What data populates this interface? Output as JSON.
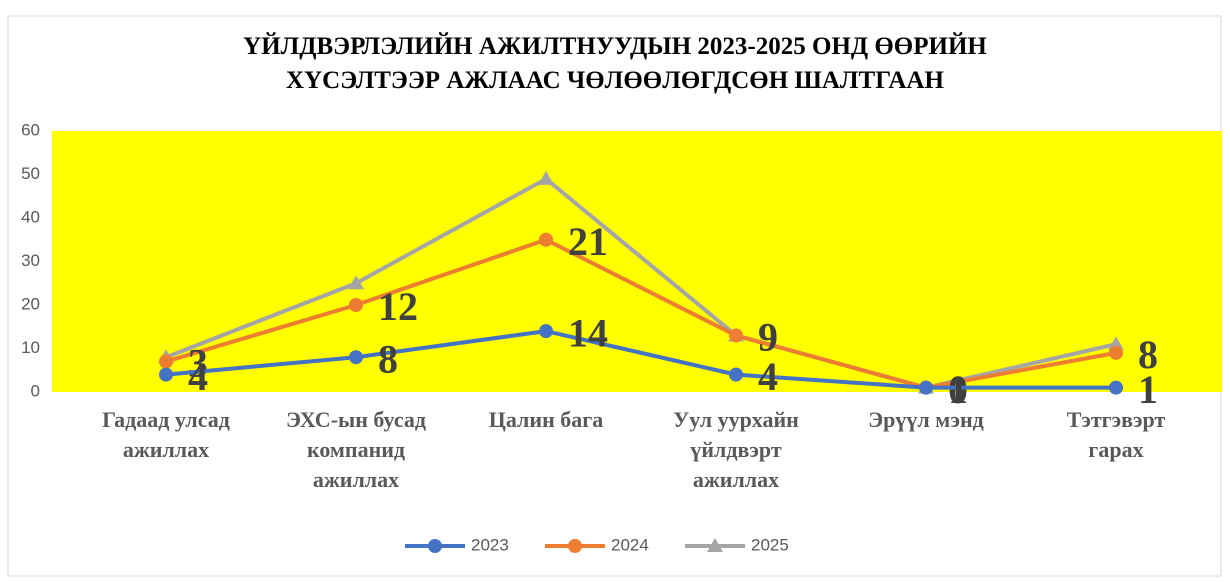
{
  "chart_data": {
    "type": "line",
    "stacked": true,
    "title": "ҮЙЛДВЭРЛЭЛИЙН АЖИЛТНУУДЫН 2023-2025 ОНД ӨӨРИЙН\nХҮСЭЛТЭЭР АЖЛААС ЧӨЛӨӨЛӨГДСӨН ШАЛТГААН",
    "categories": [
      "Гадаад улсад\nажиллах",
      "ЭХС-ын бусад\nкомпанид\nажиллах",
      "Цалин бага",
      "Уул уурхайн\nүйлдвэрт\nажиллах",
      "Эрүүл мэнд",
      "Тэтгэвэрт\nгарах"
    ],
    "series": [
      {
        "name": "2023",
        "color": "#4472c4",
        "marker": "circle",
        "labels": true,
        "values": [
          4,
          8,
          14,
          4,
          1,
          1
        ]
      },
      {
        "name": "2024",
        "color": "#ed7d31",
        "marker": "circle",
        "labels": true,
        "values": [
          3,
          12,
          21,
          9,
          0,
          8
        ]
      },
      {
        "name": "2025",
        "color": "#a5a5a5",
        "marker": "triangle",
        "labels": false,
        "values": [
          1,
          5,
          14,
          0,
          0,
          2
        ]
      }
    ],
    "ylim": [
      0,
      60
    ],
    "yticks": [
      0,
      10,
      20,
      30,
      40,
      50,
      60
    ],
    "grid": false,
    "plot_background": "#ffff00",
    "legend": "bottom"
  }
}
